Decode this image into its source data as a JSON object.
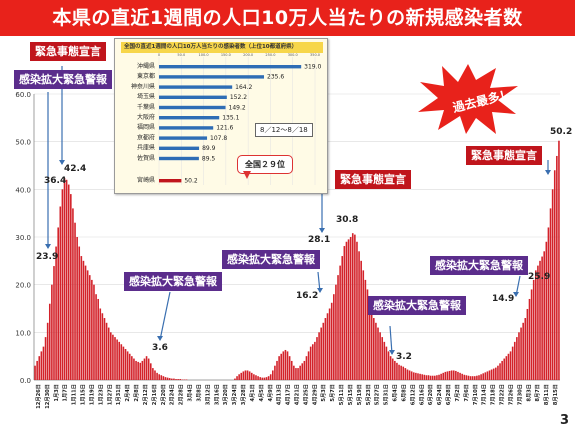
{
  "title": "本県の直近1週間の人口10万人当たりの新規感染者数",
  "page_number": "3",
  "annotations": {
    "emergency_1": "緊急事態宣言",
    "alert_1": "感染拡大緊急警報",
    "alert_2": "感染拡大緊急警報",
    "emergency_2": "緊急事態宣言",
    "alert_3": "感染拡大緊急警報",
    "alert_4": "感染拡大緊急警報",
    "alert_5": "感染拡大緊急警報",
    "emergency_3": "緊急事態宣言",
    "record": "過去最多！"
  },
  "value_labels": {
    "v1": "23.9",
    "v2": "36.4",
    "v3": "42.4",
    "v4": "3.6",
    "v5": "16.2",
    "v6": "28.1",
    "v7": "30.8",
    "v8": "3.2",
    "v9": "14.9",
    "v10": "25.9",
    "v11": "50.2"
  },
  "colors": {
    "title_bg": "#e8221b",
    "bar": "#d3222a",
    "inset_bar": "#2f6db5",
    "emergency": "#c0151c",
    "alert": "#5b2d8c"
  },
  "inset": {
    "title": "全国の直近1週間の人口10万人当たりの感染者数（上位10都道府県）",
    "period": "8／12～8／18",
    "rank_note": "全国２９位",
    "axis_ticks": [
      "0",
      "50.0",
      "100.0",
      "150.0",
      "200.0",
      "250.0",
      "300.0",
      "350.0"
    ]
  },
  "chart_data": [
    {
      "type": "bar",
      "title": "本県の直近1週間の人口10万人当たりの新規感染者数",
      "ylim": [
        0,
        60
      ],
      "yticks": [
        "0.0",
        "10.0",
        "20.0",
        "30.0",
        "40.0",
        "50.0",
        "60.0"
      ],
      "x_tick_labels": [
        "12月26日",
        "12月30日",
        "1月3日",
        "1月7日",
        "1月11日",
        "1月15日",
        "1月19日",
        "1月23日",
        "1月27日",
        "1月31日",
        "2月4日",
        "2月8日",
        "2月12日",
        "2月16日",
        "2月20日",
        "2月24日",
        "2月28日",
        "3月4日",
        "3月8日",
        "3月12日",
        "3月16日",
        "3月20日",
        "3月24日",
        "3月28日",
        "4月1日",
        "4月5日",
        "4月9日",
        "4月13日",
        "4月17日",
        "4月21日",
        "4月25日",
        "4月29日",
        "5月3日",
        "5月7日",
        "5月11日",
        "5月15日",
        "5月19日",
        "5月23日",
        "5月27日",
        "5月31日",
        "6月4日",
        "6月8日",
        "6月12日",
        "6月16日",
        "6月20日",
        "6月24日",
        "6月28日",
        "7月2日",
        "7月6日",
        "7月10日",
        "7月14日",
        "7月18日",
        "7月22日",
        "7月26日",
        "7月30日",
        "8月3日",
        "8月7日",
        "8月11日",
        "8月15日"
      ],
      "values": [
        3,
        4,
        5,
        6,
        7,
        9,
        12,
        16,
        20,
        23.9,
        28,
        32,
        36.4,
        40,
        42.4,
        42,
        41,
        39,
        36,
        33,
        30,
        28,
        26,
        25,
        24,
        23,
        22,
        21,
        20,
        18,
        17,
        15,
        14,
        13,
        12,
        11,
        10,
        9.5,
        9,
        8.5,
        8,
        7.5,
        7,
        6.5,
        6,
        5.5,
        5,
        4.5,
        4,
        3.8,
        3.6,
        4,
        4.5,
        5,
        4.5,
        3.5,
        2.5,
        2,
        1.5,
        1.2,
        1,
        0.8,
        0.6,
        0.5,
        0.4,
        0.3,
        0.3,
        0.2,
        0.2,
        0.2,
        0.1,
        0.1,
        0.1,
        0,
        0,
        0,
        0,
        0,
        0,
        0,
        0,
        0,
        0,
        0,
        0,
        0,
        0,
        0,
        0,
        0,
        0,
        0,
        0,
        0,
        0,
        0.3,
        0.8,
        1.2,
        1.5,
        1.8,
        2,
        2,
        1.8,
        1.5,
        1.2,
        1,
        0.8,
        0.6,
        0.5,
        0.5,
        0.6,
        0.8,
        1.2,
        2,
        3,
        4,
        5,
        5.5,
        6,
        6.3,
        6,
        5,
        4,
        3,
        2.5,
        2.5,
        3,
        3.5,
        4,
        5,
        6,
        7,
        7.5,
        8,
        9,
        10,
        11,
        12,
        13,
        14,
        15,
        16.2,
        18,
        20,
        22,
        24,
        26,
        28.1,
        29,
        29.5,
        30,
        30.8,
        30.5,
        29,
        27,
        25,
        23,
        21,
        19,
        17,
        15,
        13,
        12,
        11,
        10,
        9,
        8,
        7,
        6,
        5,
        4.5,
        4,
        3.6,
        3.2,
        3,
        2.8,
        2.5,
        2.2,
        2,
        1.8,
        1.6,
        1.5,
        1.4,
        1.3,
        1.2,
        1.1,
        1,
        1,
        0.9,
        0.9,
        0.9,
        1,
        1.1,
        1.3,
        1.5,
        1.7,
        1.8,
        1.9,
        2,
        2,
        1.9,
        1.7,
        1.5,
        1.3,
        1.1,
        1,
        0.9,
        0.8,
        0.8,
        0.8,
        0.9,
        1,
        1.2,
        1.4,
        1.6,
        1.8,
        2,
        2.2,
        2.4,
        2.6,
        3,
        3.5,
        4,
        4.5,
        5,
        5.5,
        6,
        7,
        8,
        9,
        10,
        11,
        12,
        13,
        14.9,
        17,
        19,
        21,
        23,
        24,
        25,
        25.9,
        27,
        29,
        32,
        36,
        40,
        44,
        47,
        50.2
      ]
    },
    {
      "type": "bar",
      "title": "全国の直近1週間の人口10万人当たりの感染者数（上位10都道府県）",
      "categories": [
        "沖縄県",
        "東京都",
        "神奈川県",
        "埼玉県",
        "千葉県",
        "大阪府",
        "福岡県",
        "京都府",
        "兵庫県",
        "佐賀県",
        "宮崎県"
      ],
      "values": [
        319.0,
        235.6,
        164.2,
        152.2,
        149.2,
        135.1,
        121.6,
        107.8,
        89.9,
        89.5,
        50.2
      ],
      "value_labels": [
        "319.0",
        "235.6",
        "164.2",
        "152.2",
        "149.2",
        "135.1",
        "121.6",
        "107.8",
        "89.9",
        "89.5",
        "50.2"
      ],
      "xlim": [
        0,
        350
      ]
    }
  ]
}
